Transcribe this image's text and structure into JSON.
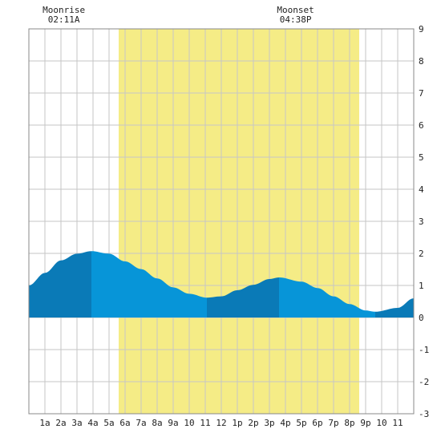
{
  "chart_data": {
    "type": "area",
    "title": "",
    "xlabel": "",
    "ylabel": "",
    "x_tick_labels": [
      "1a",
      "2a",
      "3a",
      "4a",
      "5a",
      "6a",
      "7a",
      "8a",
      "9a",
      "10",
      "11",
      "12",
      "1p",
      "2p",
      "3p",
      "4p",
      "5p",
      "6p",
      "7p",
      "8p",
      "9p",
      "10",
      "11"
    ],
    "xlim": [
      0,
      24
    ],
    "ylim": [
      -3,
      9
    ],
    "y_ticks": [
      -3,
      -2,
      -1,
      0,
      1,
      2,
      3,
      4,
      5,
      6,
      7,
      8,
      9
    ],
    "grid": true,
    "daylight": {
      "start_hour": 5.6,
      "end_hour": 20.6
    },
    "moonrise": {
      "label": "Moonrise",
      "time": "02:11A",
      "hour": 2.18
    },
    "moonset": {
      "label": "Moonset",
      "time": "04:38P",
      "hour": 16.63
    },
    "extremes": [
      {
        "type": "high",
        "hour": 3.9,
        "height": 2.07
      },
      {
        "type": "low",
        "hour": 11.1,
        "height": 0.62
      },
      {
        "type": "high",
        "hour": 15.6,
        "height": 1.25
      },
      {
        "type": "low",
        "hour": 21.6,
        "height": 0.18
      }
    ],
    "series": [
      {
        "x": [
          0,
          1,
          2,
          3,
          3.9,
          5,
          6,
          7,
          8,
          9,
          10,
          11.1,
          12,
          13,
          14,
          15,
          15.6,
          17,
          18,
          19,
          20,
          21,
          21.6,
          23,
          24
        ],
        "y": [
          1.0,
          1.39,
          1.78,
          1.99,
          2.07,
          1.99,
          1.75,
          1.51,
          1.22,
          0.94,
          0.74,
          0.62,
          0.66,
          0.85,
          1.02,
          1.2,
          1.25,
          1.12,
          0.92,
          0.66,
          0.42,
          0.22,
          0.18,
          0.3,
          0.6
        ]
      }
    ],
    "colors": {
      "daylight": "#f5ec86",
      "tide_light": "#0795d8",
      "tide_dark": "#0a7ab7",
      "grid": "#c6c6c6",
      "axis": "#888888",
      "background": "#ffffff"
    }
  }
}
